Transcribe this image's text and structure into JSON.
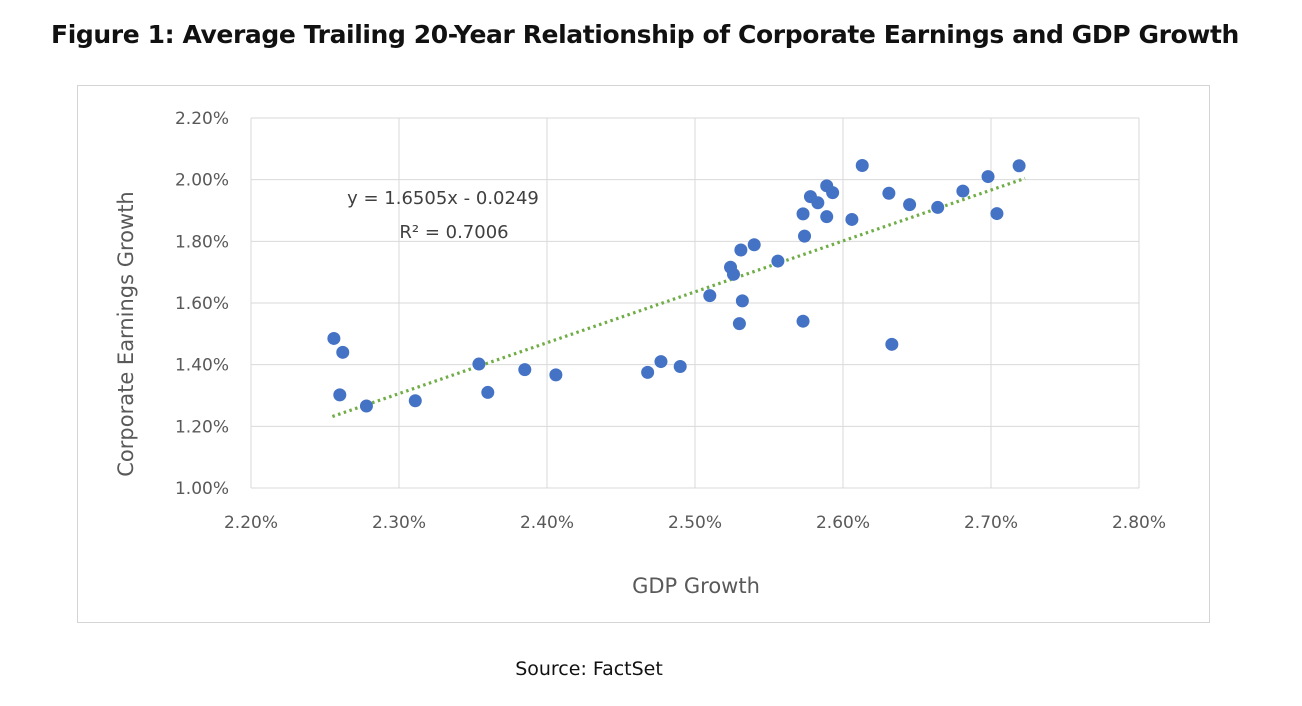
{
  "figure": {
    "title": "Figure 1: Average Trailing 20-Year Relationship of Corporate Earnings and GDP Growth",
    "source": "Source: FactSet"
  },
  "colors": {
    "points": "#4472c4",
    "trendline": "#70ad47",
    "gridlines": "#d9d9d9",
    "axis_text": "#595959"
  },
  "chart_data": {
    "type": "scatter",
    "xlabel": "GDP Growth",
    "ylabel": "Corporate Earnings Growth",
    "xlim": [
      0.022,
      0.028
    ],
    "ylim": [
      0.01,
      0.022
    ],
    "x_ticks": [
      0.022,
      0.023,
      0.024,
      0.025,
      0.026,
      0.027,
      0.028
    ],
    "x_tick_labels": [
      "2.20%",
      "2.30%",
      "2.40%",
      "2.50%",
      "2.60%",
      "2.70%",
      "2.80%"
    ],
    "y_ticks": [
      0.01,
      0.012,
      0.014,
      0.016,
      0.018,
      0.02,
      0.022
    ],
    "y_tick_labels": [
      "1.00%",
      "1.20%",
      "1.40%",
      "1.60%",
      "1.80%",
      "2.00%",
      "2.20%"
    ],
    "grid": true,
    "legend": "none",
    "trendline": {
      "type": "linear",
      "slope": 1.6505,
      "intercept": -0.0249,
      "x_range": [
        0.02255,
        0.02723
      ],
      "style": "dotted",
      "equation_label": "y = 1.6505x - 0.0249",
      "r2_label": "R² = 0.7006"
    },
    "points": [
      {
        "x": 0.02256,
        "y": 0.01485
      },
      {
        "x": 0.02262,
        "y": 0.0144
      },
      {
        "x": 0.0226,
        "y": 0.01302
      },
      {
        "x": 0.02278,
        "y": 0.01266
      },
      {
        "x": 0.02311,
        "y": 0.01283
      },
      {
        "x": 0.02354,
        "y": 0.01402
      },
      {
        "x": 0.0236,
        "y": 0.0131
      },
      {
        "x": 0.02385,
        "y": 0.01384
      },
      {
        "x": 0.02406,
        "y": 0.01367
      },
      {
        "x": 0.02468,
        "y": 0.01375
      },
      {
        "x": 0.02477,
        "y": 0.0141
      },
      {
        "x": 0.0249,
        "y": 0.01394
      },
      {
        "x": 0.0251,
        "y": 0.01624
      },
      {
        "x": 0.02524,
        "y": 0.01716
      },
      {
        "x": 0.02526,
        "y": 0.01693
      },
      {
        "x": 0.02531,
        "y": 0.01772
      },
      {
        "x": 0.0253,
        "y": 0.01533
      },
      {
        "x": 0.02532,
        "y": 0.01607
      },
      {
        "x": 0.0254,
        "y": 0.01789
      },
      {
        "x": 0.02556,
        "y": 0.01736
      },
      {
        "x": 0.02573,
        "y": 0.01889
      },
      {
        "x": 0.02574,
        "y": 0.01817
      },
      {
        "x": 0.02573,
        "y": 0.01541
      },
      {
        "x": 0.02578,
        "y": 0.01945
      },
      {
        "x": 0.02583,
        "y": 0.01925
      },
      {
        "x": 0.02589,
        "y": 0.0198
      },
      {
        "x": 0.02593,
        "y": 0.01958
      },
      {
        "x": 0.02589,
        "y": 0.0188
      },
      {
        "x": 0.02606,
        "y": 0.01871
      },
      {
        "x": 0.02613,
        "y": 0.02046
      },
      {
        "x": 0.02631,
        "y": 0.01956
      },
      {
        "x": 0.02633,
        "y": 0.01466
      },
      {
        "x": 0.02645,
        "y": 0.01919
      },
      {
        "x": 0.02664,
        "y": 0.0191
      },
      {
        "x": 0.02681,
        "y": 0.01963
      },
      {
        "x": 0.02698,
        "y": 0.0201
      },
      {
        "x": 0.02704,
        "y": 0.0189
      },
      {
        "x": 0.02719,
        "y": 0.02045
      }
    ]
  }
}
